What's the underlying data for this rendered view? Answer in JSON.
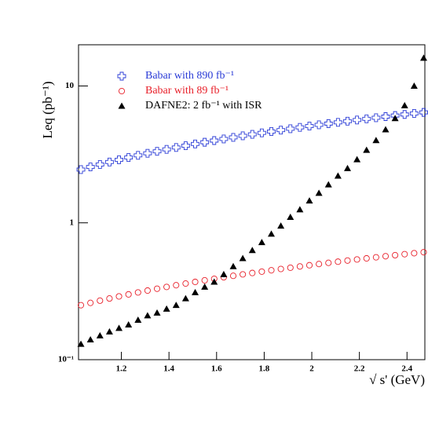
{
  "chart_data": {
    "type": "scatter",
    "x_label": "√ s' (GeV)",
    "y_label": "Leq (pb⁻¹)",
    "xlim": [
      1.02,
      2.475
    ],
    "ylim": [
      0.1,
      20
    ],
    "log_y": true,
    "xticks": [
      1.2,
      1.4,
      1.6,
      1.8,
      2,
      2.2,
      2.4
    ],
    "yticks": [
      {
        "value": 0.1,
        "label": "10⁻¹"
      },
      1,
      10
    ],
    "legend": "upper left",
    "x": [
      1.03,
      1.07,
      1.11,
      1.15,
      1.19,
      1.23,
      1.27,
      1.31,
      1.35,
      1.39,
      1.43,
      1.47,
      1.51,
      1.55,
      1.59,
      1.63,
      1.67,
      1.71,
      1.75,
      1.79,
      1.83,
      1.87,
      1.91,
      1.95,
      1.99,
      2.03,
      2.07,
      2.11,
      2.15,
      2.19,
      2.23,
      2.27,
      2.31,
      2.35,
      2.39,
      2.43,
      2.47
    ],
    "series": [
      {
        "name": "Babar with 890 fb⁻¹",
        "color": "#2a3bd6",
        "marker": "cross",
        "values": [
          2.45,
          2.56,
          2.67,
          2.78,
          2.89,
          3.0,
          3.11,
          3.22,
          3.33,
          3.44,
          3.55,
          3.66,
          3.77,
          3.88,
          3.99,
          4.1,
          4.21,
          4.32,
          4.43,
          4.54,
          4.65,
          4.76,
          4.87,
          4.98,
          5.09,
          5.2,
          5.31,
          5.42,
          5.53,
          5.64,
          5.75,
          5.86,
          5.97,
          6.08,
          6.19,
          6.3,
          6.41
        ]
      },
      {
        "name": "Babar with 89 fb⁻¹",
        "color": "#e8202a",
        "marker": "circle",
        "values": [
          0.25,
          0.26,
          0.27,
          0.28,
          0.29,
          0.3,
          0.31,
          0.32,
          0.33,
          0.34,
          0.35,
          0.36,
          0.37,
          0.38,
          0.39,
          0.4,
          0.41,
          0.42,
          0.43,
          0.44,
          0.45,
          0.46,
          0.47,
          0.48,
          0.49,
          0.5,
          0.51,
          0.52,
          0.53,
          0.54,
          0.55,
          0.56,
          0.57,
          0.58,
          0.59,
          0.6,
          0.61
        ]
      },
      {
        "name": "DAFNE2: 2 fb⁻¹ with ISR",
        "color": "#000000",
        "marker": "triangle",
        "values": [
          0.13,
          0.14,
          0.15,
          0.16,
          0.17,
          0.18,
          0.195,
          0.21,
          0.22,
          0.235,
          0.25,
          0.28,
          0.31,
          0.34,
          0.37,
          0.42,
          0.48,
          0.55,
          0.63,
          0.72,
          0.83,
          0.95,
          1.1,
          1.25,
          1.45,
          1.65,
          1.9,
          2.2,
          2.5,
          2.9,
          3.4,
          4.0,
          4.8,
          5.8,
          7.2,
          10,
          16
        ]
      }
    ]
  }
}
